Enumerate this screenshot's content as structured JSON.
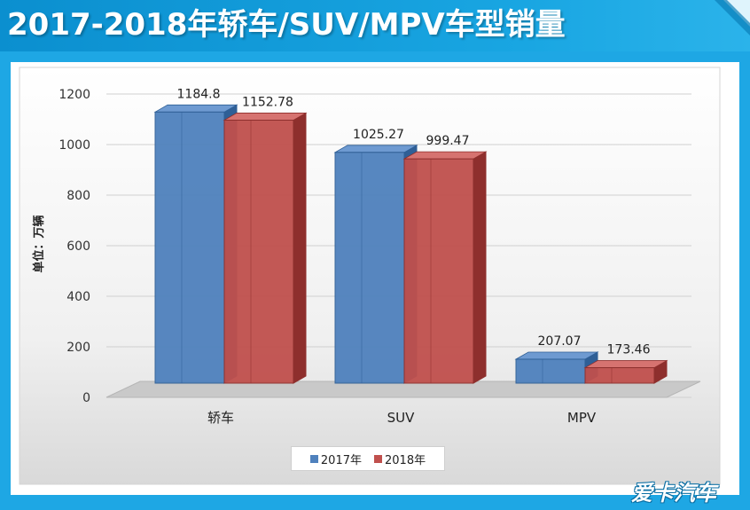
{
  "header": {
    "title": "2017-2018年轿车/SUV/MPV车型销量"
  },
  "watermark": {
    "text": "爱卡汽车"
  },
  "colors": {
    "series_2017": "#4f81bd",
    "series_2018": "#c0504d",
    "frame": "#1ea7e4"
  },
  "chart_data": {
    "type": "bar",
    "title": "",
    "ylabel": "单位：万辆",
    "xlabel": "",
    "categories": [
      "轿车",
      "SUV",
      "MPV"
    ],
    "series": [
      {
        "name": "2017年",
        "values": [
          1184.8,
          1025.27,
          207.07
        ],
        "labels": [
          "1184.8",
          "1025.27",
          "207.07"
        ]
      },
      {
        "name": "2018年",
        "values": [
          1152.78,
          999.47,
          173.46
        ],
        "labels": [
          "1152.78",
          "999.47",
          "173.46"
        ]
      }
    ],
    "ylim": [
      0,
      1200
    ],
    "yticks": [
      "0",
      "200",
      "400",
      "600",
      "800",
      "1000",
      "1200"
    ],
    "grid": true,
    "legend_position": "bottom"
  }
}
